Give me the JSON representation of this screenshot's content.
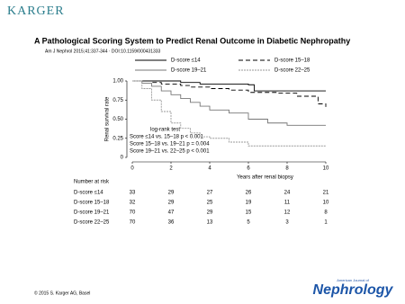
{
  "header": {
    "brand": "KARGER",
    "title": "A Pathological Scoring System to Predict Renal Outcome in Diabetic Nephropathy",
    "citation": "Am J Nephrol 2015;41:337-344 · DOI:10.1159/000431333"
  },
  "footer": {
    "copyright": "© 2015 S. Karger AG, Basel",
    "journal_prefix": "American Journal of",
    "journal": "Nephrology"
  },
  "chart_data": {
    "type": "line",
    "step": true,
    "xlabel": "Years after renal biopsy",
    "ylabel": "Renal survival rate",
    "xlim": [
      0,
      10
    ],
    "xticks": [
      0,
      2,
      4,
      6,
      8,
      10
    ],
    "ylim": [
      0,
      1
    ],
    "yticks": [
      0,
      0.25,
      {
        "value": 0.5,
        "label": "0.50"
      },
      0.75,
      {
        "value": 1,
        "label": "1.00"
      }
    ],
    "annotations": [
      "log-rank test",
      "Score ≤14 vs. 15–18 p < 0.001",
      "Score 15–18 vs. 19–21 p = 0.004",
      "Score 19–21 vs. 22–25 p < 0.001"
    ],
    "at_risk_title": "Number at risk",
    "series": [
      {
        "name": "D-score ≤14",
        "color": "#000000",
        "dash": "none",
        "x": [
          0,
          1,
          2.5,
          3.5,
          6,
          6.3,
          10
        ],
        "values": [
          1,
          1,
          0.98,
          0.96,
          0.95,
          0.87,
          0.87
        ],
        "at_risk": [
          33,
          29,
          27,
          26,
          24,
          21
        ]
      },
      {
        "name": "D-score 15–18",
        "color": "#000000",
        "dash": "5,3",
        "x": [
          0,
          1,
          1.5,
          2.5,
          3,
          4,
          5,
          6,
          7.5,
          8.5,
          9.6,
          10
        ],
        "values": [
          1,
          0.98,
          0.96,
          0.94,
          0.92,
          0.9,
          0.88,
          0.85,
          0.84,
          0.8,
          0.7,
          0.66
        ],
        "at_risk": [
          32,
          29,
          25,
          19,
          11,
          10
        ]
      },
      {
        "name": "D-score 19–21",
        "color": "#777777",
        "dash": "none",
        "x": [
          0,
          0.5,
          1,
          1.5,
          2,
          2.5,
          3,
          3.5,
          4,
          5,
          6,
          7,
          8,
          10
        ],
        "values": [
          1,
          0.97,
          0.93,
          0.87,
          0.82,
          0.77,
          0.72,
          0.67,
          0.62,
          0.58,
          0.5,
          0.45,
          0.42,
          0.42
        ],
        "at_risk": [
          70,
          47,
          29,
          15,
          12,
          8
        ]
      },
      {
        "name": "D-score 22–25",
        "color": "#999999",
        "dash": "2,1",
        "x": [
          0,
          0.5,
          1,
          1.5,
          2,
          2.5,
          3,
          3.5,
          4,
          5,
          6,
          8,
          10
        ],
        "values": [
          1,
          0.9,
          0.75,
          0.6,
          0.45,
          0.38,
          0.32,
          0.27,
          0.25,
          0.2,
          0.15,
          0.15,
          0.15
        ],
        "at_risk": [
          70,
          36,
          13,
          5,
          3,
          1
        ]
      }
    ]
  }
}
